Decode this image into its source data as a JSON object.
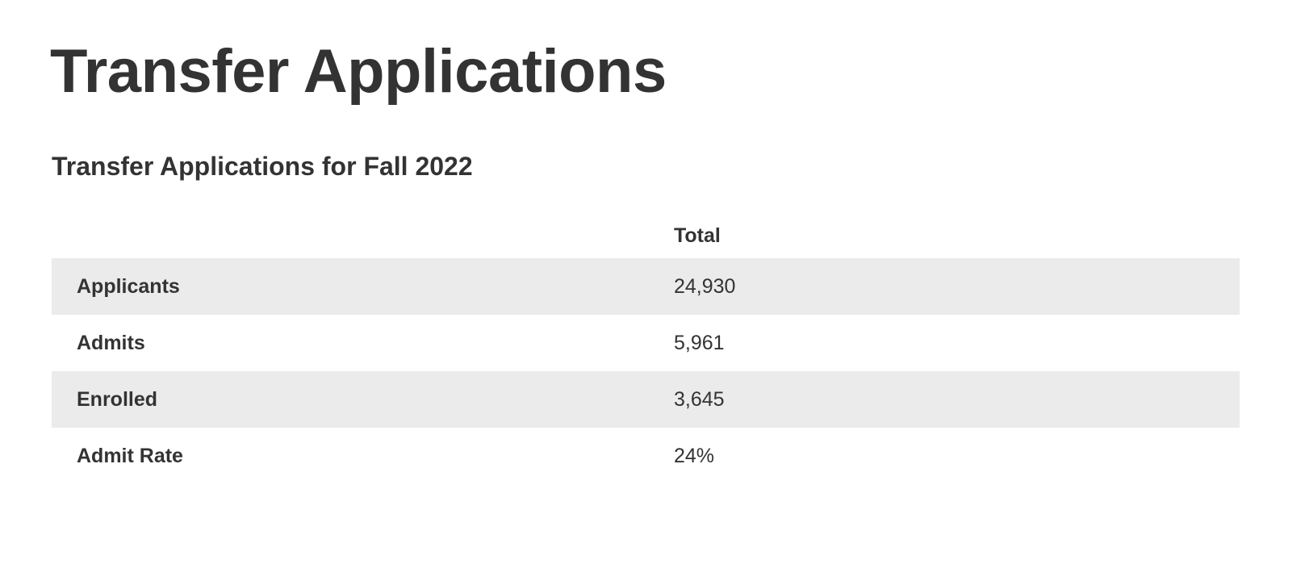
{
  "header": {
    "title": "Transfer Applications"
  },
  "table": {
    "caption": "Transfer Applications for Fall 2022",
    "columns": [
      "Total"
    ],
    "rows": [
      [
        "Applicants",
        "24,930"
      ],
      [
        "Admits",
        "5,961"
      ],
      [
        "Enrolled",
        "3,645"
      ],
      [
        "Admit Rate",
        "24%"
      ]
    ]
  }
}
